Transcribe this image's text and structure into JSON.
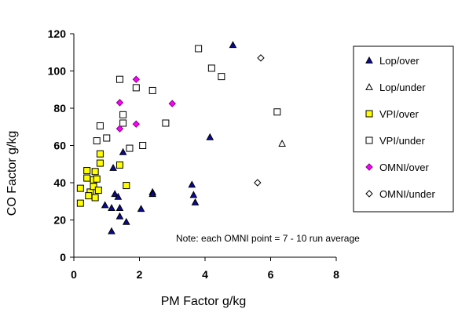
{
  "chart_data": {
    "type": "scatter",
    "xlabel": "PM Factor g/kg",
    "ylabel": "CO Factor g/kg",
    "xlim": [
      0,
      8
    ],
    "ylim": [
      0,
      120
    ],
    "xticks": [
      0,
      2,
      4,
      6,
      8
    ],
    "yticks": [
      0,
      20,
      40,
      60,
      80,
      100,
      120
    ],
    "grid": false,
    "legend_position": "right",
    "annotation": "Note: each OMNI point = 7 - 10 run average",
    "series": [
      {
        "name": "Lop/over",
        "marker": "triangle",
        "fill": "#0a0a9a",
        "stroke": "#000000",
        "points": [
          [
            4.85,
            114
          ],
          [
            4.15,
            64.5
          ],
          [
            1.5,
            56.5
          ],
          [
            1.2,
            48
          ],
          [
            1.25,
            34
          ],
          [
            1.35,
            32.5
          ],
          [
            1.4,
            26.5
          ],
          [
            1.15,
            26.5
          ],
          [
            0.95,
            28
          ],
          [
            1.4,
            22
          ],
          [
            1.6,
            19
          ],
          [
            1.15,
            14
          ],
          [
            2.05,
            26
          ],
          [
            2.4,
            35
          ],
          [
            2.4,
            34
          ],
          [
            3.6,
            39
          ],
          [
            3.65,
            33.5
          ],
          [
            3.7,
            29.5
          ]
        ]
      },
      {
        "name": "Lop/under",
        "marker": "triangle",
        "fill": "#ffffff",
        "stroke": "#000000",
        "points": [
          [
            6.35,
            61
          ]
        ]
      },
      {
        "name": "VPI/over",
        "marker": "square",
        "fill": "#ffff00",
        "stroke": "#000000",
        "points": [
          [
            0.2,
            37
          ],
          [
            0.2,
            29
          ],
          [
            0.4,
            46.5
          ],
          [
            0.4,
            42.5
          ],
          [
            0.5,
            35
          ],
          [
            0.45,
            33
          ],
          [
            0.6,
            41.5
          ],
          [
            0.65,
            46
          ],
          [
            0.7,
            42
          ],
          [
            0.8,
            55.5
          ],
          [
            0.8,
            50.5
          ],
          [
            0.6,
            38
          ],
          [
            0.65,
            32
          ],
          [
            0.75,
            36
          ],
          [
            1.4,
            49.5
          ],
          [
            1.6,
            38.5
          ]
        ]
      },
      {
        "name": "VPI/under",
        "marker": "square",
        "fill": "#ffffff",
        "stroke": "#000000",
        "points": [
          [
            0.7,
            62.5
          ],
          [
            0.8,
            70.5
          ],
          [
            1.0,
            64
          ],
          [
            1.4,
            95.5
          ],
          [
            1.5,
            76.5
          ],
          [
            1.5,
            72
          ],
          [
            1.7,
            58.5
          ],
          [
            1.9,
            91
          ],
          [
            2.1,
            60
          ],
          [
            2.4,
            89.5
          ],
          [
            2.8,
            72
          ],
          [
            3.8,
            112
          ],
          [
            4.2,
            101.5
          ],
          [
            4.5,
            97
          ],
          [
            6.2,
            78
          ]
        ]
      },
      {
        "name": "OMNI/over",
        "marker": "diamond",
        "fill": "#ff00ff",
        "stroke": "#800080",
        "points": [
          [
            1.4,
            83
          ],
          [
            1.4,
            69
          ],
          [
            1.9,
            95.5
          ],
          [
            1.9,
            71.5
          ],
          [
            3.0,
            82.5
          ]
        ]
      },
      {
        "name": "OMNI/under",
        "marker": "diamond",
        "fill": "#ffffff",
        "stroke": "#000000",
        "points": [
          [
            5.7,
            107
          ],
          [
            5.6,
            40
          ]
        ]
      }
    ]
  }
}
